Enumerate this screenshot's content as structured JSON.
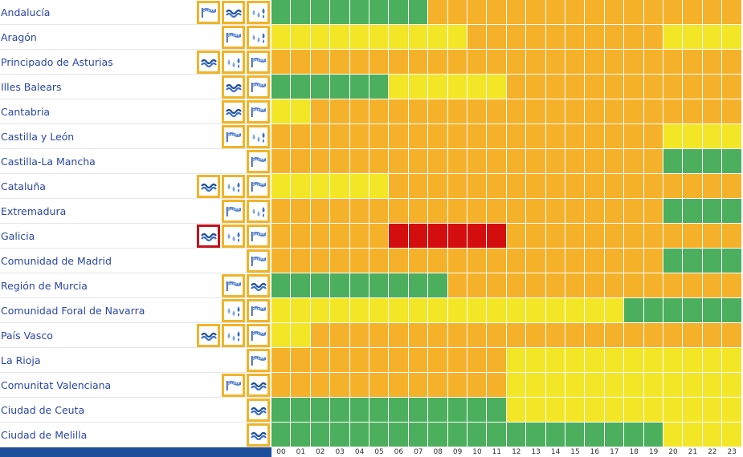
{
  "colors": {
    "green": "#4caf5e",
    "yellow": "#f2e626",
    "orange": "#f6b12b",
    "red": "#d40e0e",
    "icon_border_yellow": "#f0b429",
    "icon_border_red": "#c4121c",
    "region_text": "#2a46a6",
    "footer_bar": "#1d4e9b"
  },
  "hours": [
    "00",
    "01",
    "02",
    "03",
    "04",
    "05",
    "06",
    "07",
    "08",
    "09",
    "10",
    "11",
    "12",
    "13",
    "14",
    "15",
    "16",
    "17",
    "18",
    "19",
    "20",
    "21",
    "22",
    "23"
  ],
  "regions": [
    {
      "name": "Andalucía",
      "icons": [
        {
          "type": "wind-icon",
          "level": "yellow"
        },
        {
          "type": "coastal-icon",
          "level": "yellow"
        },
        {
          "type": "rain-icon",
          "level": "yellow"
        }
      ],
      "levels": "gggggggg"
    },
    {
      "name": "Aragón",
      "icons": [
        {
          "type": "wind-icon",
          "level": "yellow"
        },
        {
          "type": "rain-icon",
          "level": "yellow"
        }
      ],
      "levels": "yyyyyyyyyy"
    },
    {
      "name": "Principado de Asturias",
      "icons": [
        {
          "type": "coastal-icon",
          "level": "yellow"
        },
        {
          "type": "rain-icon",
          "level": "yellow"
        },
        {
          "type": "wind-icon",
          "level": "yellow"
        }
      ],
      "levels": ""
    },
    {
      "name": "Illes Balears",
      "icons": [
        {
          "type": "coastal-icon",
          "level": "yellow"
        },
        {
          "type": "wind-icon",
          "level": "yellow"
        }
      ],
      "levels": "ggggggyyyyyy"
    },
    {
      "name": "Cantabria",
      "icons": [
        {
          "type": "coastal-icon",
          "level": "yellow"
        },
        {
          "type": "wind-icon",
          "level": "yellow"
        }
      ],
      "levels": "yy"
    },
    {
      "name": "Castilla y León",
      "icons": [
        {
          "type": "wind-icon",
          "level": "yellow"
        },
        {
          "type": "rain-icon",
          "level": "yellow"
        }
      ],
      "levels": ""
    },
    {
      "name": "Castilla-La Mancha",
      "icons": [
        {
          "type": "wind-icon",
          "level": "yellow"
        }
      ],
      "levels": ""
    },
    {
      "name": "Cataluña",
      "icons": [
        {
          "type": "coastal-icon",
          "level": "yellow"
        },
        {
          "type": "rain-icon",
          "level": "yellow"
        },
        {
          "type": "wind-icon",
          "level": "yellow"
        }
      ],
      "levels": "yyyyyy"
    },
    {
      "name": "Extremadura",
      "icons": [
        {
          "type": "wind-icon",
          "level": "yellow"
        },
        {
          "type": "rain-icon",
          "level": "yellow"
        }
      ],
      "levels": ""
    },
    {
      "name": "Galicia",
      "icons": [
        {
          "type": "coastal-icon",
          "level": "red"
        },
        {
          "type": "rain-icon",
          "level": "yellow"
        },
        {
          "type": "wind-icon",
          "level": "yellow"
        }
      ],
      "levels": "oooooorrrrrr"
    },
    {
      "name": "Comunidad de Madrid",
      "icons": [
        {
          "type": "wind-icon",
          "level": "yellow"
        }
      ],
      "levels": ""
    },
    {
      "name": "Región de Murcia",
      "icons": [
        {
          "type": "wind-icon",
          "level": "yellow"
        },
        {
          "type": "coastal-icon",
          "level": "yellow"
        }
      ],
      "levels": "ggggggggg"
    },
    {
      "name": "Comunidad Foral de Navarra",
      "icons": [
        {
          "type": "rain-icon",
          "level": "yellow"
        },
        {
          "type": "wind-icon",
          "level": "yellow"
        }
      ],
      "levels": "yyyyyyyyyyyyyyyyyy"
    },
    {
      "name": "País Vasco",
      "icons": [
        {
          "type": "coastal-icon",
          "level": "yellow"
        },
        {
          "type": "rain-icon",
          "level": "yellow"
        },
        {
          "type": "wind-icon",
          "level": "yellow"
        }
      ],
      "levels": "yy"
    },
    {
      "name": "La Rioja",
      "icons": [
        {
          "type": "wind-icon",
          "level": "yellow"
        }
      ],
      "levels": ""
    },
    {
      "name": "Comunitat Valenciana",
      "icons": [
        {
          "type": "wind-icon",
          "level": "yellow"
        },
        {
          "type": "coastal-icon",
          "level": "yellow"
        }
      ],
      "levels": ""
    },
    {
      "name": "Ciudad de Ceuta",
      "icons": [
        {
          "type": "coastal-icon",
          "level": "yellow"
        }
      ],
      "levels": "gggggggggggg"
    },
    {
      "name": "Ciudad de Melilla",
      "icons": [
        {
          "type": "coastal-icon",
          "level": "yellow"
        }
      ],
      "levels": "gggggggggggggggggggg"
    }
  ],
  "tail_levels": [
    "oooooooooooooooo",
    "ooooooooooyyyy",
    "oooooooooooooooooooooooo",
    "oooooooooooo",
    "oooooooooooooooooooooo",
    "ooooooooooooooooooooyyyy",
    "ooooooooooooooooooooggggg",
    "oooooooooooooooooo",
    "ooooooooooooooooooooggggg",
    "oooooooooooo",
    "ooooooooooooooooooooggggg",
    "ooooooooooooooo",
    "gggggg",
    "oooooooooooooooooooooo",
    "ooooooooooooyyyyyyyyyyyy",
    "ooooooooooooyyyyyyyyyyyy",
    "yyyyyyyyyyyy",
    "yyyy"
  ]
}
